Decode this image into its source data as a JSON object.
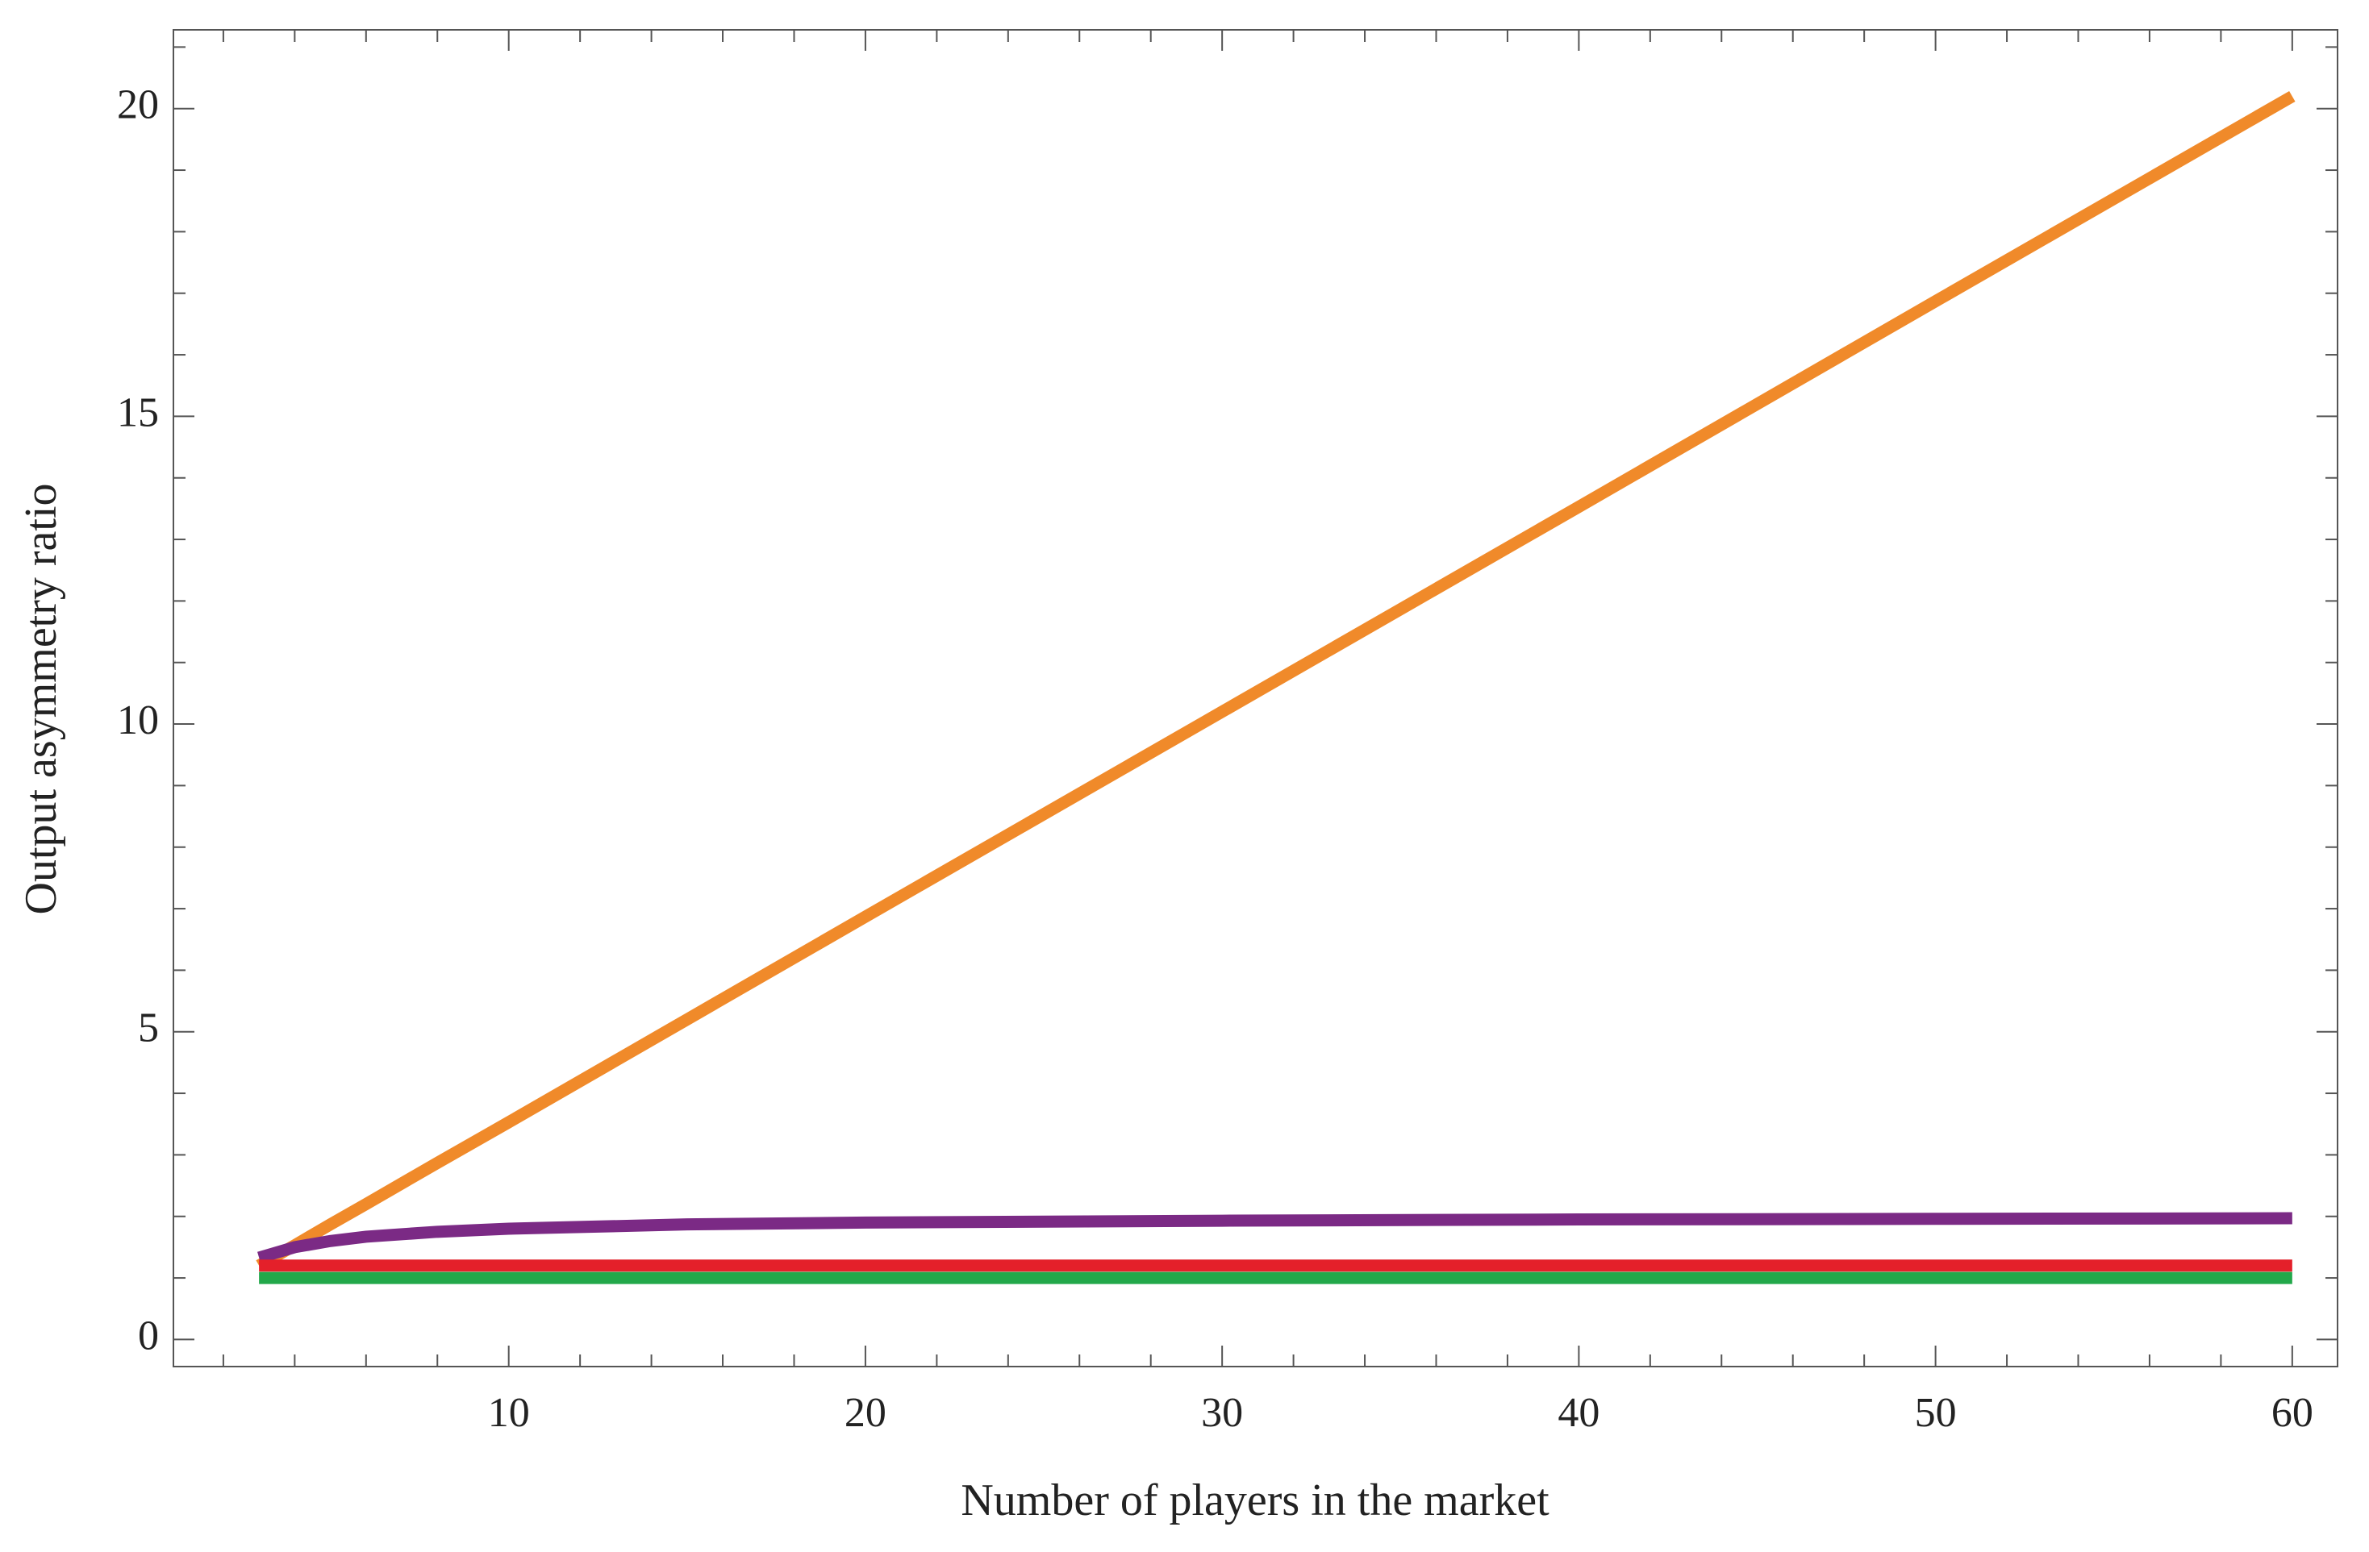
{
  "chart_data": {
    "type": "line",
    "x_label": "Number of players in the market",
    "y_label": "Output asymmetry ratio",
    "x": [
      3,
      4,
      5,
      6,
      8,
      10,
      15,
      20,
      30,
      40,
      50,
      60
    ],
    "series": [
      {
        "color": "#f08a2a",
        "values": [
          1.2,
          1.53,
          1.87,
          2.2,
          2.87,
          3.53,
          5.2,
          6.87,
          10.2,
          13.53,
          16.87,
          20.2
        ]
      },
      {
        "color": "#7b2a85",
        "values": [
          1.33,
          1.5,
          1.6,
          1.67,
          1.75,
          1.8,
          1.87,
          1.9,
          1.93,
          1.95,
          1.96,
          1.97
        ]
      },
      {
        "color": "#e4202a",
        "values": [
          1.2,
          1.2,
          1.2,
          1.2,
          1.2,
          1.2,
          1.2,
          1.2,
          1.2,
          1.2,
          1.2,
          1.2
        ]
      },
      {
        "color": "#22a84a",
        "values": [
          1.0,
          1.0,
          1.0,
          1.0,
          1.0,
          1.0,
          1.0,
          1.0,
          1.0,
          1.0,
          1.0,
          1.0
        ]
      }
    ],
    "xlim": [
      0.6,
      61.27
    ],
    "ylim": [
      -0.44,
      21.28
    ],
    "xticks": [
      10,
      20,
      30,
      40,
      50,
      60
    ],
    "yticks": [
      0,
      5,
      10,
      15,
      20
    ],
    "xminor_ticks": [
      2,
      4,
      6,
      8,
      12,
      14,
      16,
      18,
      22,
      24,
      26,
      28,
      32,
      34,
      36,
      38,
      42,
      44,
      46,
      48,
      52,
      54,
      56,
      58
    ],
    "yminor_ticks": [
      1,
      2,
      3,
      4,
      6,
      7,
      8,
      9,
      11,
      12,
      13,
      14,
      16,
      17,
      18,
      19,
      21
    ]
  }
}
